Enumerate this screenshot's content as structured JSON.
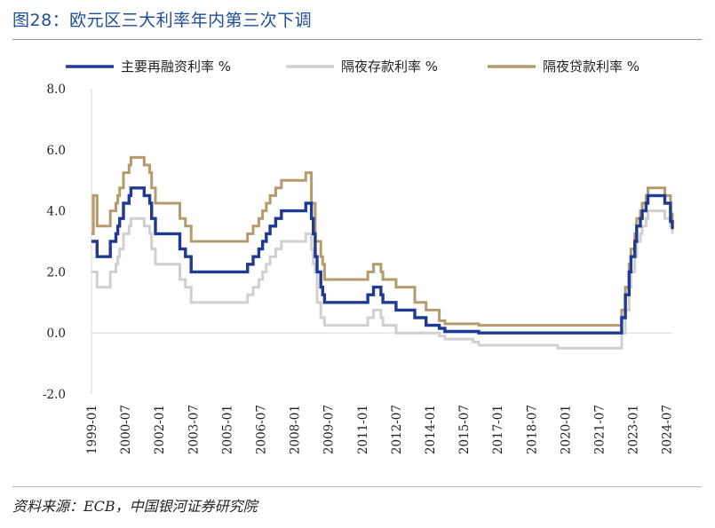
{
  "figure": {
    "title": "图28：欧元区三大利率年内第三次下调",
    "source": "资料来源：ECB，中国银河证券研究院"
  },
  "chart_data": {
    "type": "line",
    "title": "图28：欧元区三大利率年内第三次下调",
    "xlabel": "",
    "ylabel": "",
    "ylim": [
      -2.0,
      8.0
    ],
    "yticks": [
      "8.0",
      "6.0",
      "4.0",
      "2.0",
      "0.0",
      "-2.0"
    ],
    "xlim": [
      "1999-01",
      "2024-10"
    ],
    "xticks": [
      "1999-01",
      "2000-07",
      "2002-01",
      "2003-07",
      "2005-01",
      "2006-07",
      "2008-01",
      "2009-07",
      "2011-01",
      "2012-07",
      "2014-01",
      "2015-07",
      "2017-01",
      "2018-07",
      "2020-01",
      "2021-07",
      "2023-01",
      "2024-07"
    ],
    "grid": false,
    "legend_position": "top",
    "step": true,
    "series": [
      {
        "name": "主要再融资利率 %",
        "color": "#1f3a93",
        "points": [
          [
            "1999-01",
            3.0
          ],
          [
            "1999-04",
            2.5
          ],
          [
            "1999-11",
            3.0
          ],
          [
            "2000-02",
            3.25
          ],
          [
            "2000-03",
            3.5
          ],
          [
            "2000-04",
            3.75
          ],
          [
            "2000-06",
            4.25
          ],
          [
            "2000-09",
            4.5
          ],
          [
            "2000-10",
            4.75
          ],
          [
            "2001-05",
            4.5
          ],
          [
            "2001-08",
            4.25
          ],
          [
            "2001-09",
            3.75
          ],
          [
            "2001-11",
            3.25
          ],
          [
            "2002-12",
            2.75
          ],
          [
            "2003-03",
            2.5
          ],
          [
            "2003-06",
            2.0
          ],
          [
            "2005-12",
            2.25
          ],
          [
            "2006-03",
            2.5
          ],
          [
            "2006-06",
            2.75
          ],
          [
            "2006-08",
            3.0
          ],
          [
            "2006-10",
            3.25
          ],
          [
            "2006-12",
            3.5
          ],
          [
            "2007-03",
            3.75
          ],
          [
            "2007-06",
            4.0
          ],
          [
            "2008-07",
            4.25
          ],
          [
            "2008-10",
            3.75
          ],
          [
            "2008-11",
            3.25
          ],
          [
            "2008-12",
            2.5
          ],
          [
            "2009-01",
            2.0
          ],
          [
            "2009-03",
            1.5
          ],
          [
            "2009-04",
            1.25
          ],
          [
            "2009-05",
            1.0
          ],
          [
            "2011-04",
            1.25
          ],
          [
            "2011-07",
            1.5
          ],
          [
            "2011-11",
            1.25
          ],
          [
            "2011-12",
            1.0
          ],
          [
            "2012-07",
            0.75
          ],
          [
            "2013-05",
            0.5
          ],
          [
            "2013-11",
            0.25
          ],
          [
            "2014-06",
            0.15
          ],
          [
            "2014-09",
            0.05
          ],
          [
            "2016-03",
            0.0
          ],
          [
            "2022-07",
            0.5
          ],
          [
            "2022-09",
            1.25
          ],
          [
            "2022-11",
            2.0
          ],
          [
            "2022-12",
            2.5
          ],
          [
            "2023-02",
            3.0
          ],
          [
            "2023-03",
            3.5
          ],
          [
            "2023-05",
            3.75
          ],
          [
            "2023-06",
            4.0
          ],
          [
            "2023-08",
            4.25
          ],
          [
            "2023-09",
            4.5
          ],
          [
            "2024-06",
            4.25
          ],
          [
            "2024-09",
            3.65
          ],
          [
            "2024-10",
            3.4
          ]
        ]
      },
      {
        "name": "隔夜存款利率 %",
        "color": "#d0d0d0",
        "points": [
          [
            "1999-01",
            2.0
          ],
          [
            "1999-04",
            1.5
          ],
          [
            "1999-11",
            2.0
          ],
          [
            "2000-02",
            2.25
          ],
          [
            "2000-03",
            2.5
          ],
          [
            "2000-04",
            2.75
          ],
          [
            "2000-06",
            3.25
          ],
          [
            "2000-09",
            3.5
          ],
          [
            "2000-10",
            3.75
          ],
          [
            "2001-05",
            3.5
          ],
          [
            "2001-08",
            3.25
          ],
          [
            "2001-09",
            2.75
          ],
          [
            "2001-11",
            2.25
          ],
          [
            "2002-12",
            1.75
          ],
          [
            "2003-03",
            1.5
          ],
          [
            "2003-06",
            1.0
          ],
          [
            "2005-12",
            1.25
          ],
          [
            "2006-03",
            1.5
          ],
          [
            "2006-06",
            1.75
          ],
          [
            "2006-08",
            2.0
          ],
          [
            "2006-10",
            2.25
          ],
          [
            "2006-12",
            2.5
          ],
          [
            "2007-03",
            2.75
          ],
          [
            "2007-06",
            3.0
          ],
          [
            "2008-07",
            3.25
          ],
          [
            "2008-10",
            2.75
          ],
          [
            "2008-11",
            2.25
          ],
          [
            "2008-12",
            2.0
          ],
          [
            "2009-01",
            1.0
          ],
          [
            "2009-03",
            0.5
          ],
          [
            "2009-05",
            0.25
          ],
          [
            "2011-04",
            0.5
          ],
          [
            "2011-07",
            0.75
          ],
          [
            "2011-11",
            0.5
          ],
          [
            "2011-12",
            0.25
          ],
          [
            "2012-07",
            0.0
          ],
          [
            "2014-06",
            -0.1
          ],
          [
            "2014-09",
            -0.2
          ],
          [
            "2015-12",
            -0.3
          ],
          [
            "2016-03",
            -0.4
          ],
          [
            "2019-09",
            -0.5
          ],
          [
            "2022-07",
            0.0
          ],
          [
            "2022-09",
            0.75
          ],
          [
            "2022-11",
            1.5
          ],
          [
            "2022-12",
            2.0
          ],
          [
            "2023-02",
            2.5
          ],
          [
            "2023-03",
            3.0
          ],
          [
            "2023-05",
            3.25
          ],
          [
            "2023-06",
            3.5
          ],
          [
            "2023-08",
            3.75
          ],
          [
            "2023-09",
            4.0
          ],
          [
            "2024-06",
            3.75
          ],
          [
            "2024-09",
            3.5
          ],
          [
            "2024-10",
            3.25
          ]
        ]
      },
      {
        "name": "隔夜贷款利率 %",
        "color": "#b59b6b",
        "points": [
          [
            "1999-01",
            3.25
          ],
          [
            "1999-02",
            4.5
          ],
          [
            "1999-04",
            3.5
          ],
          [
            "1999-11",
            4.0
          ],
          [
            "2000-02",
            4.25
          ],
          [
            "2000-03",
            4.5
          ],
          [
            "2000-04",
            4.75
          ],
          [
            "2000-06",
            5.25
          ],
          [
            "2000-09",
            5.5
          ],
          [
            "2000-10",
            5.75
          ],
          [
            "2001-05",
            5.5
          ],
          [
            "2001-08",
            5.25
          ],
          [
            "2001-09",
            4.75
          ],
          [
            "2001-11",
            4.25
          ],
          [
            "2002-12",
            3.75
          ],
          [
            "2003-03",
            3.5
          ],
          [
            "2003-06",
            3.0
          ],
          [
            "2005-12",
            3.25
          ],
          [
            "2006-03",
            3.5
          ],
          [
            "2006-06",
            3.75
          ],
          [
            "2006-08",
            4.0
          ],
          [
            "2006-10",
            4.25
          ],
          [
            "2006-12",
            4.5
          ],
          [
            "2007-03",
            4.75
          ],
          [
            "2007-06",
            5.0
          ],
          [
            "2008-07",
            5.25
          ],
          [
            "2008-10",
            4.25
          ],
          [
            "2008-12",
            3.0
          ],
          [
            "2009-01",
            3.0
          ],
          [
            "2009-03",
            2.5
          ],
          [
            "2009-04",
            2.25
          ],
          [
            "2009-05",
            1.75
          ],
          [
            "2011-04",
            2.0
          ],
          [
            "2011-07",
            2.25
          ],
          [
            "2011-11",
            2.0
          ],
          [
            "2011-12",
            1.75
          ],
          [
            "2012-07",
            1.5
          ],
          [
            "2013-05",
            1.0
          ],
          [
            "2013-11",
            0.75
          ],
          [
            "2014-06",
            0.4
          ],
          [
            "2014-09",
            0.3
          ],
          [
            "2016-03",
            0.25
          ],
          [
            "2022-07",
            0.75
          ],
          [
            "2022-09",
            1.5
          ],
          [
            "2022-11",
            2.25
          ],
          [
            "2022-12",
            2.75
          ],
          [
            "2023-02",
            3.25
          ],
          [
            "2023-03",
            3.75
          ],
          [
            "2023-05",
            4.0
          ],
          [
            "2023-06",
            4.25
          ],
          [
            "2023-08",
            4.5
          ],
          [
            "2023-09",
            4.75
          ],
          [
            "2024-06",
            4.5
          ],
          [
            "2024-09",
            3.9
          ],
          [
            "2024-10",
            3.65
          ]
        ]
      }
    ]
  }
}
